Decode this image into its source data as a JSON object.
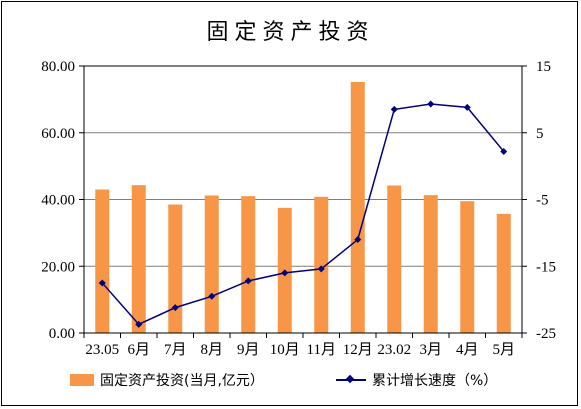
{
  "chart_data": {
    "type": "bar",
    "title": "固定资产投资",
    "categories": [
      "23.05",
      "6月",
      "7月",
      "8月",
      "9月",
      "10月",
      "11月",
      "12月",
      "23.02",
      "3月",
      "4月",
      "5月"
    ],
    "series": [
      {
        "name": "固定资产投资(当月,亿元）",
        "type": "bar",
        "axis": "left",
        "values": [
          43.0,
          44.3,
          38.5,
          41.2,
          41.0,
          37.5,
          40.8,
          75.2,
          44.2,
          41.3,
          39.5,
          35.7
        ]
      },
      {
        "name": "累计增长速度（%）",
        "type": "line",
        "axis": "right",
        "values": [
          -17.5,
          -23.7,
          -21.2,
          -19.5,
          -17.2,
          -16.0,
          -15.4,
          -11.0,
          8.5,
          9.3,
          8.8,
          2.2
        ]
      }
    ],
    "y_left": {
      "min": 0,
      "max": 80,
      "ticks": [
        0,
        20,
        40,
        60,
        80
      ],
      "tick_labels": [
        "0.00",
        "20.00",
        "40.00",
        "60.00",
        "80.00"
      ]
    },
    "y_right": {
      "min": -25,
      "max": 15,
      "ticks": [
        15,
        5,
        -5,
        -15,
        -25
      ],
      "tick_labels": [
        "15",
        "5",
        "-5",
        "-15",
        "-25"
      ]
    },
    "grid": true,
    "legend": "bottom",
    "colors": {
      "bar": "#f79646",
      "line": "#00007f",
      "grid": "#7f7f7f"
    }
  }
}
